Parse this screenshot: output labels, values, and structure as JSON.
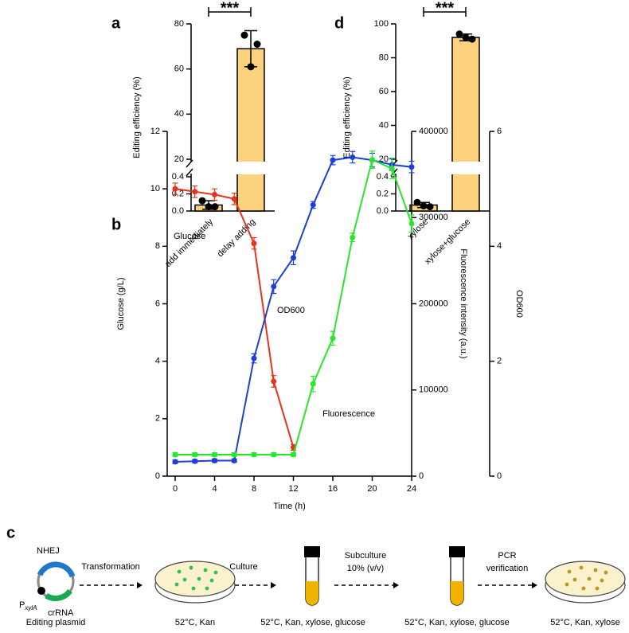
{
  "chart_data": [
    {
      "label": "a",
      "type": "bar",
      "categories": [
        "add immediately",
        "delay adding"
      ],
      "values": [
        0.07,
        69
      ],
      "errors": [
        0.05,
        8
      ],
      "points": [
        [
          0.12,
          0.05,
          0.05
        ],
        [
          75,
          71,
          61
        ]
      ],
      "color": "#fdd27f",
      "ylabel": "Editing efficiency (%)",
      "ylim_lower": [
        0,
        0.4
      ],
      "yticks_lower": [
        {
          "value": 0,
          "label": "0.0"
        },
        0.2,
        0.4
      ],
      "ylim": [
        20,
        80
      ],
      "yticks": [
        20,
        40,
        60,
        80
      ],
      "annotation": "***"
    },
    {
      "label": "d",
      "type": "bar",
      "categories": [
        "xylose",
        "xylose+glucose"
      ],
      "values": [
        0.07,
        92
      ],
      "errors": [
        0.03,
        2
      ],
      "points": [
        [
          0.1,
          0.05,
          0.06
        ],
        [
          94,
          91,
          92
        ]
      ],
      "color": "#fdd27f",
      "ylabel": "Editing efficiency (%)",
      "ylim_lower": [
        0,
        0.4
      ],
      "yticks_lower": [
        {
          "value": 0,
          "label": "0.0"
        },
        0.2,
        0.4
      ],
      "ylim": [
        20,
        100
      ],
      "yticks": [
        20,
        40,
        60,
        80,
        100
      ],
      "annotation": "***"
    },
    {
      "label": "b",
      "type": "line",
      "xlabel": "Time (h)",
      "ylabel": "Glucose (g/L)",
      "y2label": "Fluorescence intensity (a.u.)",
      "y3label": "OD600",
      "xlim": [
        0,
        24
      ],
      "xticks": [
        0,
        4,
        8,
        12,
        16,
        20,
        24
      ],
      "ylim": [
        0,
        12
      ],
      "yticks": [
        0,
        2,
        4,
        6,
        8,
        10,
        12
      ],
      "y2lim": [
        0,
        400000
      ],
      "y2ticks": [
        0,
        100000,
        200000,
        300000,
        400000
      ],
      "y3lim": [
        0,
        6
      ],
      "y3ticks": [
        0,
        2,
        4,
        6
      ],
      "series": [
        {
          "name": "Glucose",
          "color": "#e8321e",
          "axis": "y",
          "x": [
            0,
            2,
            4,
            6,
            8,
            10,
            12
          ],
          "values": [
            10,
            9.9,
            9.8,
            9.65,
            8.1,
            3.3,
            1.0
          ],
          "errors": [
            0.2,
            0.2,
            0.2,
            0.2,
            0.2,
            0.2,
            0.1
          ]
        },
        {
          "name": "OD600",
          "color": "#1d3fd6",
          "axis": "y3",
          "x": [
            0,
            2,
            4,
            6,
            8,
            10,
            12,
            14,
            16,
            18,
            20,
            22,
            24
          ],
          "values": [
            0.25,
            0.26,
            0.27,
            0.27,
            2.05,
            3.3,
            3.8,
            4.72,
            5.5,
            5.55,
            5.5,
            5.42,
            5.38
          ],
          "errors": [
            0.03,
            0.03,
            0.03,
            0.03,
            0.08,
            0.12,
            0.12,
            0.06,
            0.08,
            0.1,
            0.12,
            0.1,
            0.1
          ]
        },
        {
          "name": "Fluorescence",
          "color": "#29e62c",
          "axis": "y2",
          "x": [
            0,
            2,
            4,
            6,
            8,
            10,
            12,
            14,
            16,
            18,
            20,
            22,
            24
          ],
          "values": [
            25000,
            25000,
            25000,
            25000,
            25000,
            25000,
            25000,
            107000,
            160000,
            277000,
            367000,
            357000,
            293000
          ],
          "errors": [
            2000,
            2000,
            2000,
            2000,
            2000,
            2000,
            2000,
            9000,
            8000,
            5000,
            10000,
            12000,
            10000
          ]
        }
      ]
    }
  ],
  "diagram": {
    "label": "c",
    "plasmid": {
      "gene": "NHEJ",
      "promoter": "P",
      "promoter_sub": "xylA",
      "rna": "crRNA"
    },
    "steps": [
      "Transformation",
      "Culture",
      "Subculture",
      "10% (v/v)",
      "PCR",
      "verification"
    ],
    "captions": [
      "Editing plasmid",
      "52°C, Kan",
      "52°C, Kan, xylose, glucose",
      "52°C, Kan, xylose, glucose",
      "52°C, Kan, xylose"
    ]
  }
}
